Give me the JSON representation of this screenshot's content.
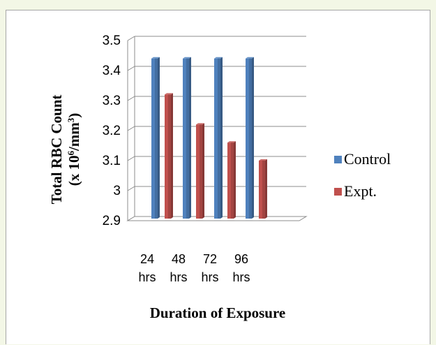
{
  "chart_data": {
    "type": "bar",
    "categories": [
      "24 hrs",
      "48 hrs",
      "72 hrs",
      "96 hrs"
    ],
    "series": [
      {
        "name": "Control",
        "values": [
          3.44,
          3.44,
          3.44,
          3.44
        ],
        "color": "#4f81bd"
      },
      {
        "name": "Expt.",
        "values": [
          3.32,
          3.22,
          3.16,
          3.1
        ],
        "color": "#c0504d"
      }
    ],
    "yticks": [
      "2.9",
      "3",
      "3.1",
      "3.2",
      "3.3",
      "3.4",
      "3.5"
    ],
    "ylim": [
      2.9,
      3.5
    ],
    "xlabel": "Duration of Exposure",
    "ylabel_line1": "Total RBC Count",
    "ylabel_line2_prefix": "(x 10",
    "ylabel_line2_sup1": "6",
    "ylabel_line2_mid": "/mm",
    "ylabel_line2_sup2": "3",
    "ylabel_line2_suffix": ")",
    "grid": true,
    "legend_position": "right"
  }
}
